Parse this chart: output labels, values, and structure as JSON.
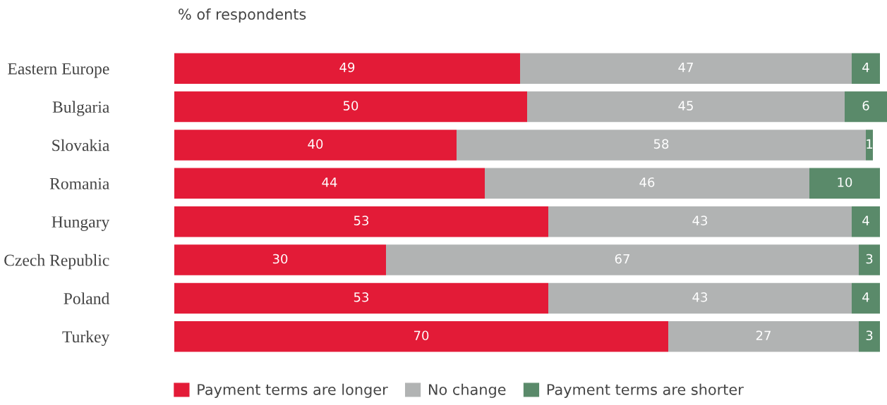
{
  "chart_data": {
    "type": "bar",
    "orientation": "horizontal",
    "stacked": true,
    "title": "% of respondents",
    "categories": [
      "Eastern Europe",
      "Bulgaria",
      "Slovakia",
      "Romania",
      "Hungary",
      "Czech Republic",
      "Poland",
      "Turkey"
    ],
    "series": [
      {
        "name": "Payment terms are longer",
        "color": "#e31b37",
        "values": [
          49,
          50,
          40,
          44,
          53,
          30,
          53,
          70
        ]
      },
      {
        "name": "No change",
        "color": "#b1b3b3",
        "values": [
          47,
          45,
          58,
          46,
          43,
          67,
          43,
          27
        ]
      },
      {
        "name": "Payment terms are shorter",
        "color": "#5a8a6a",
        "values": [
          4,
          6,
          1,
          10,
          4,
          3,
          4,
          3
        ]
      }
    ],
    "xlim": [
      0,
      101
    ],
    "tick_labels": "y",
    "data_labels": true,
    "legend": "bottom",
    "grid": false
  }
}
